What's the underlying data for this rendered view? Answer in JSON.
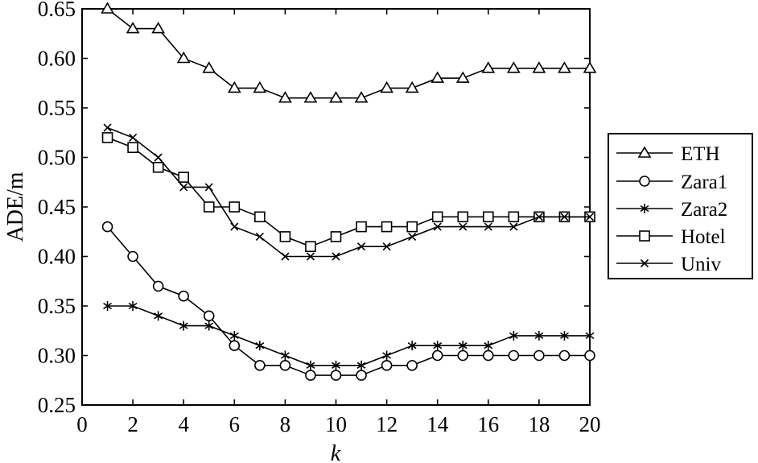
{
  "chart_data": {
    "type": "line",
    "xlabel": "k",
    "ylabel": "ADE/m",
    "xlim": [
      0,
      20
    ],
    "ylim": [
      0.25,
      0.65
    ],
    "xticks": [
      "0",
      "2",
      "4",
      "6",
      "8",
      "10",
      "12",
      "14",
      "16",
      "18",
      "20"
    ],
    "yticks": [
      "0.25",
      "0.30",
      "0.35",
      "0.40",
      "0.45",
      "0.50",
      "0.55",
      "0.60",
      "0.65"
    ],
    "x": [
      1,
      2,
      3,
      4,
      5,
      6,
      7,
      8,
      9,
      10,
      11,
      12,
      13,
      14,
      15,
      16,
      17,
      18,
      19,
      20
    ],
    "legend_position": "right",
    "grid": false,
    "series": [
      {
        "name": "ETH",
        "marker": "triangle",
        "values": [
          0.65,
          0.63,
          0.63,
          0.6,
          0.59,
          0.57,
          0.57,
          0.56,
          0.56,
          0.56,
          0.56,
          0.57,
          0.57,
          0.58,
          0.58,
          0.59,
          0.59,
          0.59,
          0.59,
          0.59
        ]
      },
      {
        "name": "Zara1",
        "marker": "circle",
        "values": [
          0.43,
          0.4,
          0.37,
          0.36,
          0.34,
          0.31,
          0.29,
          0.29,
          0.28,
          0.28,
          0.28,
          0.29,
          0.29,
          0.3,
          0.3,
          0.3,
          0.3,
          0.3,
          0.3,
          0.3
        ]
      },
      {
        "name": "Zara2",
        "marker": "asterisk",
        "values": [
          0.35,
          0.35,
          0.34,
          0.33,
          0.33,
          0.32,
          0.31,
          0.3,
          0.29,
          0.29,
          0.29,
          0.3,
          0.31,
          0.31,
          0.31,
          0.31,
          0.32,
          0.32,
          0.32,
          0.32
        ]
      },
      {
        "name": "Hotel",
        "marker": "square",
        "values": [
          0.52,
          0.51,
          0.49,
          0.48,
          0.45,
          0.45,
          0.44,
          0.42,
          0.41,
          0.42,
          0.43,
          0.43,
          0.43,
          0.44,
          0.44,
          0.44,
          0.44,
          0.44,
          0.44,
          0.44
        ]
      },
      {
        "name": "Univ",
        "marker": "cross",
        "values": [
          0.53,
          0.52,
          0.5,
          0.47,
          0.47,
          0.43,
          0.42,
          0.4,
          0.4,
          0.4,
          0.41,
          0.41,
          0.42,
          0.43,
          0.43,
          0.43,
          0.43,
          0.44,
          0.44,
          0.44
        ]
      }
    ]
  }
}
